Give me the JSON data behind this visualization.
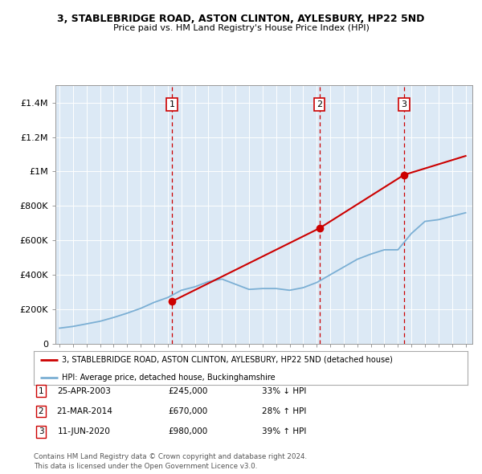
{
  "title": "3, STABLEBRIDGE ROAD, ASTON CLINTON, AYLESBURY, HP22 5ND",
  "subtitle": "Price paid vs. HM Land Registry's House Price Index (HPI)",
  "plot_bg_color": "#dce9f5",
  "transactions": [
    {
      "num": 1,
      "date": "25-APR-2003",
      "price": 245000,
      "rel": "33% ↓ HPI",
      "year": 2003.3
    },
    {
      "num": 2,
      "date": "21-MAR-2014",
      "price": 670000,
      "rel": "28% ↑ HPI",
      "year": 2014.2
    },
    {
      "num": 3,
      "date": "11-JUN-2020",
      "price": 980000,
      "rel": "39% ↑ HPI",
      "year": 2020.45
    }
  ],
  "hpi_line_color": "#7bafd4",
  "price_line_color": "#cc0000",
  "vline_color": "#cc0000",
  "legend_label_house": "3, STABLEBRIDGE ROAD, ASTON CLINTON, AYLESBURY, HP22 5ND (detached house)",
  "legend_label_hpi": "HPI: Average price, detached house, Buckinghamshire",
  "footer": "Contains HM Land Registry data © Crown copyright and database right 2024.\nThis data is licensed under the Open Government Licence v3.0.",
  "ylim": [
    0,
    1500000
  ],
  "yticks": [
    0,
    200000,
    400000,
    600000,
    800000,
    1000000,
    1200000,
    1400000
  ],
  "ytick_labels": [
    "0",
    "£200K",
    "£400K",
    "£600K",
    "£800K",
    "£1M",
    "£1.2M",
    "£1.4M"
  ],
  "hpi_years": [
    1995,
    1996,
    1997,
    1998,
    1999,
    2000,
    2001,
    2002,
    2003,
    2004,
    2005,
    2006,
    2007,
    2008,
    2009,
    2010,
    2011,
    2012,
    2013,
    2014,
    2015,
    2016,
    2017,
    2018,
    2019,
    2020,
    2021,
    2022,
    2023,
    2024,
    2025
  ],
  "hpi_values": [
    90000,
    100000,
    115000,
    130000,
    152000,
    177000,
    205000,
    240000,
    268000,
    310000,
    330000,
    360000,
    375000,
    345000,
    315000,
    320000,
    320000,
    310000,
    325000,
    355000,
    400000,
    445000,
    490000,
    520000,
    545000,
    545000,
    640000,
    710000,
    720000,
    740000,
    760000
  ],
  "price_data": [
    [
      2003.3,
      245000
    ],
    [
      2014.2,
      670000
    ],
    [
      2020.45,
      980000
    ],
    [
      2025.0,
      1090000
    ]
  ]
}
